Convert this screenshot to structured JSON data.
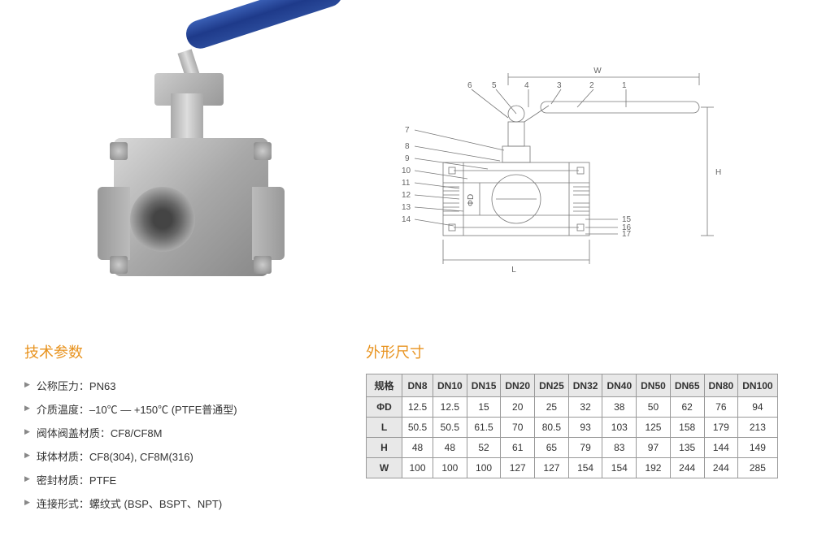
{
  "colors": {
    "section_title": "#e8931f",
    "handle": "#2a4a9a",
    "border": "#999999",
    "header_bg": "#e8e8e8",
    "text": "#333333",
    "drawing_line": "#777777"
  },
  "specs": {
    "title": "技术参数",
    "items": [
      "公称压力：PN63",
      "介质温度：–10℃ — +150℃ (PTFE普通型)",
      "阀体阀盖材质：CF8/CF8M",
      "球体材质：CF8(304), CF8M(316)",
      "密封材质：PTFE",
      "连接形式：螺纹式 (BSP、BSPT、NPT)"
    ]
  },
  "dimensions": {
    "title": "外形尺寸",
    "header_label": "规格",
    "columns": [
      "DN8",
      "DN10",
      "DN15",
      "DN20",
      "DN25",
      "DN32",
      "DN40",
      "DN50",
      "DN65",
      "DN80",
      "DN100"
    ],
    "rows": [
      {
        "label": "ΦD",
        "values": [
          "12.5",
          "12.5",
          "15",
          "20",
          "25",
          "32",
          "38",
          "50",
          "62",
          "76",
          "94"
        ]
      },
      {
        "label": "L",
        "values": [
          "50.5",
          "50.5",
          "61.5",
          "70",
          "80.5",
          "93",
          "103",
          "125",
          "158",
          "179",
          "213"
        ]
      },
      {
        "label": "H",
        "values": [
          "48",
          "48",
          "52",
          "61",
          "65",
          "79",
          "83",
          "97",
          "135",
          "144",
          "149"
        ]
      },
      {
        "label": "W",
        "values": [
          "100",
          "100",
          "100",
          "127",
          "127",
          "154",
          "154",
          "192",
          "244",
          "244",
          "285"
        ]
      }
    ]
  },
  "drawing": {
    "dim_labels": {
      "W": "W",
      "H": "H",
      "L": "L",
      "D": "ΦD"
    },
    "left_callouts": [
      "6",
      "7",
      "8",
      "9",
      "10",
      "11",
      "12",
      "13",
      "14"
    ],
    "top_callouts": [
      "5",
      "4",
      "3",
      "2",
      "1"
    ],
    "right_callouts": [
      "15",
      "16",
      "17"
    ]
  }
}
